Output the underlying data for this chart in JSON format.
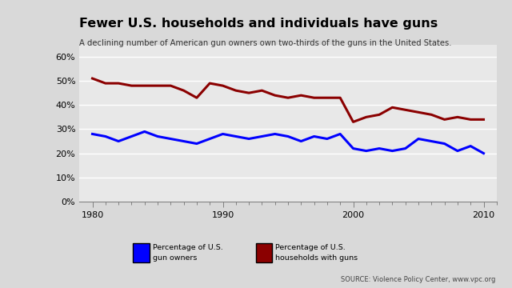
{
  "title": "Fewer U.S. households and individuals have guns",
  "subtitle": "A declining number of American gun owners own two-thirds of the guns in the United States.",
  "source": "SOURCE: Violence Policy Center, www.vpc.org",
  "bg_color": "#d9d9d9",
  "plot_bg_color": "#e8e8e8",
  "red_years": [
    1980,
    1981,
    1982,
    1983,
    1984,
    1985,
    1986,
    1987,
    1988,
    1989,
    1990,
    1991,
    1992,
    1993,
    1994,
    1995,
    1996,
    1997,
    1998,
    1999,
    2000,
    2001,
    2002,
    2003,
    2004,
    2005,
    2006,
    2007,
    2008,
    2009,
    2010
  ],
  "red_values": [
    51,
    49,
    49,
    48,
    48,
    48,
    48,
    46,
    43,
    49,
    48,
    46,
    45,
    46,
    44,
    43,
    44,
    43,
    43,
    43,
    33,
    35,
    36,
    39,
    38,
    37,
    36,
    34,
    35,
    34,
    34
  ],
  "blue_years": [
    1980,
    1981,
    1982,
    1983,
    1984,
    1985,
    1986,
    1987,
    1988,
    1989,
    1990,
    1991,
    1992,
    1993,
    1994,
    1995,
    1996,
    1997,
    1998,
    1999,
    2000,
    2001,
    2002,
    2003,
    2004,
    2005,
    2006,
    2007,
    2008,
    2009,
    2010
  ],
  "blue_values": [
    28,
    27,
    25,
    27,
    29,
    27,
    26,
    25,
    24,
    26,
    28,
    27,
    26,
    27,
    28,
    27,
    25,
    27,
    26,
    28,
    22,
    21,
    22,
    21,
    22,
    26,
    25,
    24,
    21,
    23,
    20
  ],
  "blue_color": "#0000ff",
  "red_color": "#8b0000",
  "legend_blue_label1": "Percentage of U.S.",
  "legend_blue_label2": "gun owners",
  "legend_red_label1": "Percentage of U.S.",
  "legend_red_label2": "households with guns"
}
